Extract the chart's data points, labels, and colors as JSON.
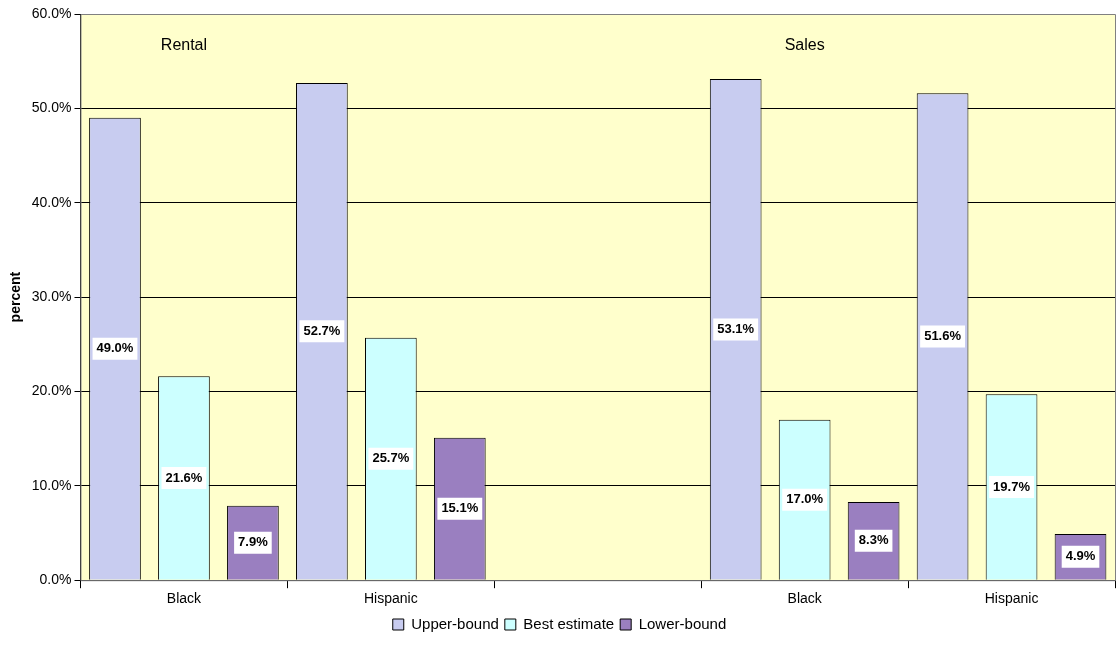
{
  "chart_data": {
    "type": "bar",
    "ylabel": "percent",
    "categories": [
      "Black",
      "Hispanic",
      null,
      "Black",
      "Hispanic"
    ],
    "series": [
      {
        "name": "Upper-bound",
        "color": "#c8ccf0",
        "values": [
          49.0,
          52.7,
          null,
          53.1,
          51.6
        ],
        "value_labels": [
          "49.0%",
          "52.7%",
          null,
          "53.1%",
          "51.6%"
        ]
      },
      {
        "name": "Best estimate",
        "color": "#ccffff",
        "values": [
          21.6,
          25.7,
          null,
          17.0,
          19.7
        ],
        "value_labels": [
          "21.6%",
          "25.7%",
          null,
          "17.0%",
          "19.7%"
        ]
      },
      {
        "name": "Lower-bound",
        "color": "#9a7fc0",
        "values": [
          7.9,
          15.1,
          null,
          8.3,
          4.9
        ],
        "value_labels": [
          "7.9%",
          "15.1%",
          null,
          "8.3%",
          "4.9%"
        ]
      }
    ],
    "annotations": [
      "Rental",
      "Sales"
    ],
    "ylim": [
      0,
      60
    ],
    "yticks": [
      {
        "value": 0,
        "label": "0.0%"
      },
      {
        "value": 10,
        "label": "10.0%"
      },
      {
        "value": 20,
        "label": "20.0%"
      },
      {
        "value": 30,
        "label": "30.0%"
      },
      {
        "value": 40,
        "label": "40.0%"
      },
      {
        "value": 50,
        "label": "50.0%"
      },
      {
        "value": 60,
        "label": "60.0%"
      }
    ],
    "grid": "y",
    "legend": "bottom"
  }
}
